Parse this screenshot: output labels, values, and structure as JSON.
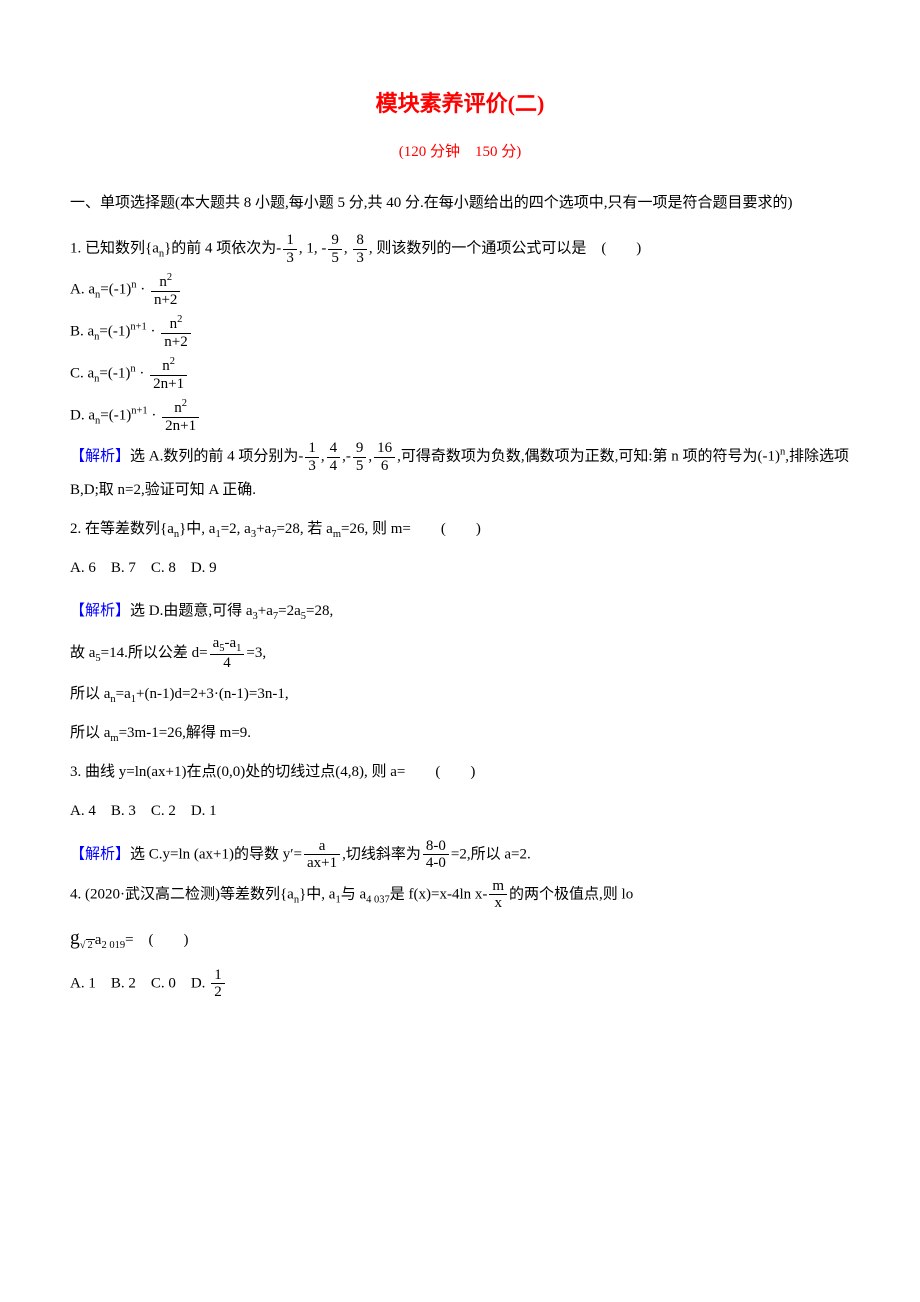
{
  "header": {
    "title": "模块素养评价(二)",
    "subtitle": "(120 分钟　150 分)",
    "title_color": "#ff0000",
    "subtitle_color": "#ff0000"
  },
  "section1_intro": "一、单项选择题(本大题共 8 小题,每小题 5 分,共 40 分.在每小题给出的四个选项中,只有一项是符合题目要求的)",
  "q1": {
    "stem_prefix": "1. 已知数列{a",
    "stem_sub": "n",
    "stem_mid": "}的前 4 项依次为-",
    "f1_num": "1",
    "f1_den": "3",
    "stem_mid2": ", 1, -",
    "f2_num": "9",
    "f2_den": "5",
    "stem_mid3": ", ",
    "f3_num": "8",
    "f3_den": "3",
    "stem_suffix": ", 则该数列的一个通项公式可以是　(　　)",
    "optA_pre": "A. a",
    "optA_mid": "=(-1)",
    "optA_exp": "n",
    "optA_dot": " · ",
    "optA_frac_num_pre": "n",
    "optA_frac_num_exp": "2",
    "optA_frac_den": "n+2",
    "optB_pre": "B. a",
    "optB_mid": "=(-1)",
    "optB_exp": "n+1",
    "optB_dot": " · ",
    "optB_frac_num_pre": "n",
    "optB_frac_num_exp": "2",
    "optB_frac_den": "n+2",
    "optC_pre": "C. a",
    "optC_mid": "=(-1)",
    "optC_exp": "n",
    "optC_dot": " · ",
    "optC_frac_num_pre": "n",
    "optC_frac_num_exp": "2",
    "optC_frac_den": "2n+1",
    "optD_pre": "D. a",
    "optD_mid": "=(-1)",
    "optD_exp": "n+1",
    "optD_dot": " · ",
    "optD_frac_num_pre": "n",
    "optD_frac_num_exp": "2",
    "optD_frac_den": "2n+1",
    "ans_label": "【解析】",
    "ans_pre": "选 A.数列的前 4 项分别为-",
    "af1_num": "1",
    "af1_den": "3",
    "ans_c1": ",",
    "af2_num": "4",
    "af2_den": "4",
    "ans_c2": ",-",
    "af3_num": "9",
    "af3_den": "5",
    "ans_c3": ",",
    "af4_num": "16",
    "af4_den": "6",
    "ans_mid": ",可得奇数项为负数,偶数项为正数,可知:第 n 项的符号为(-1)",
    "ans_exp": "n",
    "ans_suffix": ",排除选项 B,D;取 n=2,验证可知 A 正确."
  },
  "q2": {
    "stem": "2. 在等差数列{a",
    "sub_n": "n",
    "mid1": "}中, a",
    "sub1": "1",
    "mid2": "=2, a",
    "sub3": "3",
    "mid3": "+a",
    "sub7": "7",
    "mid4": "=28, 若 a",
    "subm": "m",
    "suffix": "=26, 则 m=　　(　　)",
    "choices": "A. 6　B. 7　C. 8　D. 9",
    "ans_label": "【解析】",
    "ans1": "选 D.由题意,可得 a",
    "a_sub3": "3",
    "ans2": "+a",
    "a_sub7": "7",
    "ans3": "=2a",
    "a_sub5": "5",
    "ans4": "=28,",
    "line2_pre": "故 a",
    "l2_sub5": "5",
    "line2_mid": "=14.所以公差 d=",
    "d_frac_num_pre": "a",
    "d_frac_num_sub5": "5",
    "d_frac_num_mid": "-a",
    "d_frac_num_sub1": "1",
    "d_frac_den": "4",
    "line2_suffix": "=3,",
    "line3_pre": "所以 a",
    "l3_subn": "n",
    "line3_mid": "=a",
    "l3_sub1": "1",
    "line3_suffix": "+(n-1)d=2+3·(n-1)=3n-1,",
    "line4_pre": "所以 a",
    "l4_subm": "m",
    "line4_suffix": "=3m-1=26,解得 m=9."
  },
  "q3": {
    "stem": "3. 曲线 y=ln(ax+1)在点(0,0)处的切线过点(4,8), 则 a=　　(　　)",
    "choices": "A. 4　B. 3　C. 2　D. 1",
    "ans_label": "【解析】",
    "ans_pre": "选 C.y=ln (ax+1)的导数 y′=",
    "f1_num": "a",
    "f1_den": "ax+1",
    "ans_mid": ",切线斜率为",
    "f2_num": "8-0",
    "f2_den": "4-0",
    "ans_suffix": "=2,所以 a=2."
  },
  "q4": {
    "stem_pre": "4. (2020·武汉高二检测)等差数列{a",
    "sub_n": "n",
    "stem_mid1": "}中, a",
    "sub1": "1",
    "stem_mid2": "与 a",
    "sub4037": "4 037",
    "stem_mid3": "是 f(x)=x-4ln x-",
    "f_num": "m",
    "f_den": "x",
    "stem_suffix": "的两个极值点,则 lo",
    "big_g": "g",
    "sqrt_rad": "2",
    "a_pre": "a",
    "sub2019": "2 019",
    "eq": "=　(　　)",
    "choices_pre": "A. 1　B. 2　C. 0　D. ",
    "d_num": "1",
    "d_den": "2"
  },
  "colors": {
    "text": "#000000",
    "red": "#ff0000",
    "blue": "#0000ff",
    "background": "#ffffff"
  }
}
